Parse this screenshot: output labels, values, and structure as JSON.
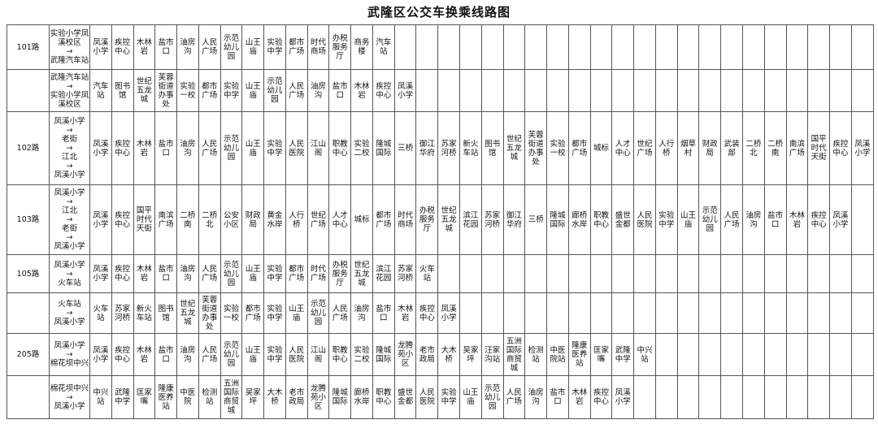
{
  "title": "武隆区公交车换乘线路图",
  "rows": [
    {
      "route": "101路",
      "direction": [
        "实验小学凤溪校区",
        "→",
        "武隆汽车站"
      ],
      "stops": [
        "凤溪小学",
        "疾控中心",
        "木林岩",
        "盐市口",
        "油房沟",
        "人民广场",
        "示范幼儿园",
        "山王庙",
        "实验中学",
        "都市广场",
        "时代商场",
        "办税服务厅",
        "商务楼",
        "汽车站"
      ]
    },
    {
      "route": "",
      "direction": [
        "武隆汽车站",
        "→",
        "实验小学凤溪校区"
      ],
      "stops": [
        "汽车站",
        "图书馆",
        "世纪五龙城",
        "芙蓉街道办事处",
        "实验一校",
        "都市广场",
        "实验中学",
        "山王庙",
        "示范幼儿园",
        "人民广场",
        "油房沟",
        "盐市口",
        "木林岩",
        "疾控中心",
        "凤溪小学"
      ]
    },
    {
      "route": "102路",
      "direction": [
        "凤溪小学",
        "→",
        "老街",
        "→",
        "江北",
        "→",
        "凤溪小学"
      ],
      "stops": [
        "凤溪小学",
        "疾控中心",
        "木林岩",
        "盐市口",
        "油房沟",
        "人民广场",
        "示范幼儿园",
        "山王庙",
        "实验中学",
        "人民医院",
        "江山阁",
        "职教中心",
        "实验二校",
        "隆城国际",
        "三桥",
        "御江华府",
        "苏家河桥",
        "新火车站",
        "图书馆",
        "世纪五龙城",
        "芙蓉街道办事处",
        "实验一校",
        "都市广场",
        "城标",
        "人才中心",
        "世纪广场",
        "人行桥",
        "烟草村",
        "财政局",
        "武装部",
        "二桥北",
        "二桥南",
        "南滨广场",
        "国平时代天街",
        "疾控中心",
        "凤溪小学"
      ]
    },
    {
      "route": "103路",
      "direction": [
        "凤溪小学",
        "→",
        "江北",
        "→",
        "老街",
        "→",
        "凤溪小学"
      ],
      "stops": [
        "凤溪小学",
        "疾控中心",
        "国平时代天街",
        "南滨广场",
        "二桥南",
        "二桥北",
        "公安小区",
        "财政局",
        "黄金水岸",
        "人行桥",
        "世纪广场",
        "人才中心",
        "城标",
        "都市广场",
        "时代商场",
        "办税服务厅",
        "世纪五龙城",
        "滨江花园",
        "苏家河桥",
        "御江华府",
        "三桥",
        "隆城国际",
        "廊桥水岸",
        "职教中心",
        "盛世金都",
        "人民医院",
        "实验中学",
        "山王庙",
        "示范幼儿园",
        "人民广场",
        "油房沟",
        "盐市口",
        "木林岩",
        "疾控中心",
        "凤溪小学"
      ]
    },
    {
      "route": "105路",
      "direction": [
        "凤溪小学",
        "→",
        "火车站"
      ],
      "stops": [
        "凤溪小学",
        "疾控中心",
        "木林岩",
        "盐市口",
        "油房沟",
        "人民广场",
        "示范幼儿园",
        "山王庙",
        "实验中学",
        "都市广场",
        "时代广场",
        "办税服务厅",
        "世纪五龙城",
        "滨江花园",
        "苏家河桥",
        "火车站"
      ]
    },
    {
      "route": "",
      "direction": [
        "火车站",
        "→",
        "凤溪小学"
      ],
      "stops": [
        "火车站",
        "苏家河桥",
        "新火车站",
        "图书馆",
        "世纪五龙城",
        "芙蓉街道办事处",
        "实验一校",
        "都市广场",
        "实验中学",
        "山王庙",
        "示范幼儿园",
        "人民广场",
        "油房沟",
        "盐市口",
        "木林岩",
        "疾控中心",
        "凤溪小学"
      ]
    },
    {
      "route": "205路",
      "direction": [
        "凤溪小学",
        "→",
        "棉花坝中兴"
      ],
      "stops": [
        "凤溪小学",
        "疾控中心",
        "木林岩",
        "盐市口",
        "油房沟",
        "人民广场",
        "示范幼儿园",
        "山王庙",
        "实验中学",
        "人民医院",
        "江山阁",
        "职教中心",
        "实验二校",
        "隆城国际",
        "龙腾苑小区",
        "老市政局",
        "大木桥",
        "吴家坪",
        "汪家沟站",
        "五洲国际商贸城",
        "检测站",
        "中医院站",
        "隆康医养站",
        "匡家嘴",
        "武隆中学",
        "中兴站"
      ]
    },
    {
      "route": "",
      "direction": [
        "棉花坝中兴",
        "→",
        "凤溪小学"
      ],
      "stops": [
        "中兴站",
        "武隆中学",
        "匡家嘴",
        "隆康医养站",
        "中医院",
        "检测站",
        "五洲国际商贸城",
        "吴家坪",
        "大木桥",
        "老市政局",
        "龙腾苑小区",
        "隆城国际",
        "廊桥水岸",
        "职教中心",
        "盛世金都",
        "人民医院",
        "实验中学",
        "山王庙",
        "示范幼儿园",
        "人民广场",
        "油房沟",
        "盐市口",
        "木林岩",
        "疾控中心",
        "凤溪小学"
      ]
    }
  ]
}
